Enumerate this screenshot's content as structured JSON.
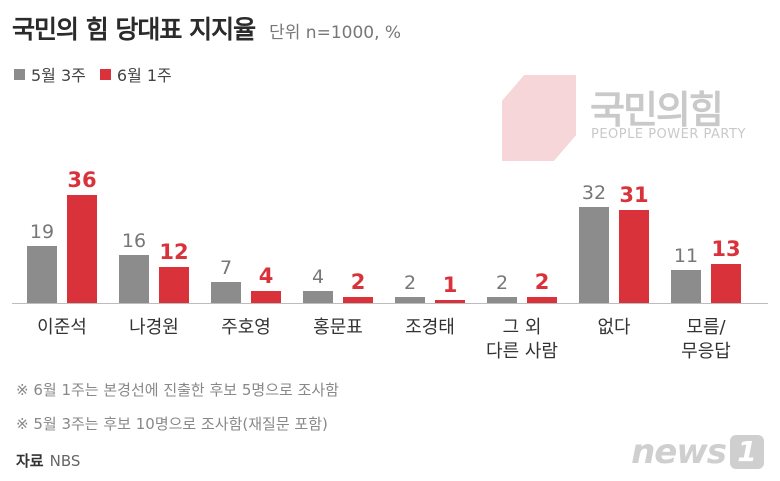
{
  "header": {
    "title": "국민의 힘 당대표 지지율",
    "unit": "단위 n=1000, %"
  },
  "logo": {
    "name": "국민의힘",
    "subtitle": "PEOPLE POWER PARTY"
  },
  "colors": {
    "gray": "#8c8c8c",
    "red": "#d9323a"
  },
  "chart_data": {
    "type": "bar",
    "categories": [
      [
        "이준석"
      ],
      [
        "나경원"
      ],
      [
        "주호영"
      ],
      [
        "홍문표"
      ],
      [
        "조경태"
      ],
      [
        "그 외",
        "다른 사람"
      ],
      [
        "없다"
      ],
      [
        "모름/",
        "무응답"
      ]
    ],
    "series": [
      {
        "name": "5월 3주",
        "color": "#8c8c8c",
        "values": [
          19,
          16,
          7,
          4,
          2,
          2,
          32,
          11
        ]
      },
      {
        "name": "6월 1주",
        "color": "#d9323a",
        "values": [
          36,
          12,
          4,
          2,
          1,
          2,
          31,
          13
        ]
      }
    ],
    "ylim": [
      0,
      40
    ],
    "legend": "top-left",
    "grid": false
  },
  "notes": [
    "※ 6월 1주는 본경선에 진출한 후보 5명으로 조사함",
    "※ 5월 3주는 후보 10명으로 조사함(재질문 포함)"
  ],
  "source": {
    "label": "자료",
    "value": "NBS"
  },
  "watermark": {
    "text": "news",
    "mark": "1"
  }
}
